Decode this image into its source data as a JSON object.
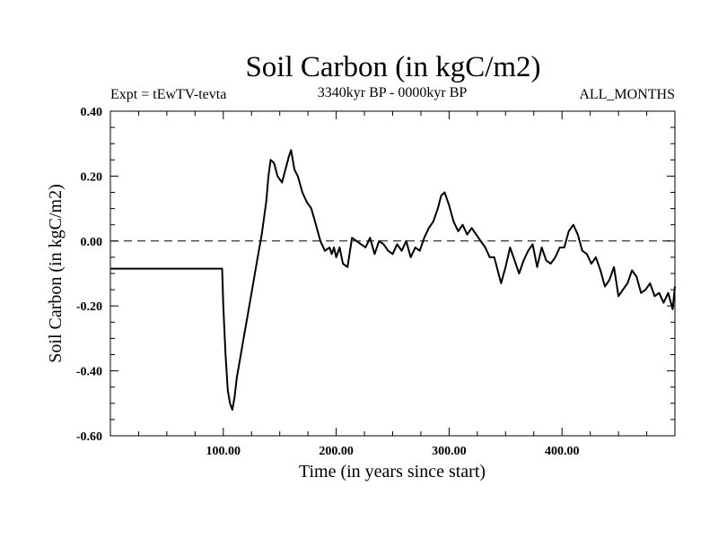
{
  "header": {
    "expt_label": "Expt = tEwTV-tevta",
    "period_label": "3340kyr BP - 0000kyr BP",
    "months_label": "ALL_MONTHS"
  },
  "chart_data": {
    "type": "line",
    "title": "Soil Carbon (in kgC/m2)",
    "xlabel": "Time (in years since start)",
    "ylabel": "Soil Carbon (in kgC/m2)",
    "xlim": [
      0,
      500
    ],
    "ylim": [
      -0.6,
      0.4
    ],
    "x_ticks": [
      100,
      200,
      300,
      400
    ],
    "x_tick_labels": [
      "100.00",
      "200.00",
      "300.00",
      "400.00"
    ],
    "y_ticks": [
      -0.6,
      -0.4,
      -0.2,
      0.0,
      0.2,
      0.4
    ],
    "y_tick_labels": [
      "-0.60",
      "-0.40",
      "-0.20",
      "0.00",
      "0.20",
      "0.40"
    ],
    "reference_line": {
      "y": 0.0,
      "style": "dashed"
    },
    "grid": false,
    "series": [
      {
        "name": "Soil Carbon",
        "x": [
          0,
          99,
          100,
          102,
          104,
          106,
          108,
          110,
          112,
          115,
          118,
          122,
          126,
          130,
          134,
          138,
          140,
          142,
          145,
          148,
          152,
          155,
          158,
          160,
          163,
          166,
          170,
          174,
          178,
          182,
          186,
          190,
          194,
          196,
          198,
          200,
          203,
          206,
          210,
          214,
          218,
          222,
          226,
          230,
          234,
          238,
          242,
          246,
          250,
          254,
          258,
          262,
          266,
          270,
          274,
          278,
          282,
          286,
          290,
          293,
          296,
          300,
          304,
          308,
          312,
          316,
          320,
          324,
          328,
          332,
          336,
          340,
          343,
          346,
          350,
          354,
          358,
          362,
          366,
          370,
          374,
          378,
          382,
          386,
          390,
          394,
          398,
          402,
          406,
          410,
          414,
          418,
          422,
          426,
          430,
          434,
          438,
          442,
          446,
          450,
          454,
          458,
          462,
          466,
          470,
          474,
          478,
          482,
          486,
          490,
          494,
          498,
          500
        ],
        "y": [
          -0.085,
          -0.085,
          -0.2,
          -0.35,
          -0.46,
          -0.5,
          -0.52,
          -0.48,
          -0.42,
          -0.36,
          -0.3,
          -0.22,
          -0.14,
          -0.06,
          0.02,
          0.12,
          0.2,
          0.25,
          0.24,
          0.2,
          0.18,
          0.22,
          0.26,
          0.28,
          0.22,
          0.2,
          0.15,
          0.12,
          0.1,
          0.05,
          0.0,
          -0.03,
          -0.02,
          -0.04,
          -0.02,
          -0.05,
          -0.02,
          -0.07,
          -0.08,
          0.01,
          0.0,
          -0.01,
          -0.02,
          0.01,
          -0.04,
          0.0,
          -0.01,
          -0.03,
          -0.04,
          -0.01,
          -0.03,
          0.0,
          -0.05,
          -0.02,
          -0.03,
          0.01,
          0.04,
          0.06,
          0.1,
          0.14,
          0.15,
          0.11,
          0.06,
          0.03,
          0.05,
          0.02,
          0.04,
          0.02,
          0.0,
          -0.02,
          -0.05,
          -0.05,
          -0.09,
          -0.13,
          -0.08,
          -0.02,
          -0.06,
          -0.1,
          -0.06,
          -0.03,
          -0.01,
          -0.08,
          -0.02,
          -0.06,
          -0.07,
          -0.05,
          -0.02,
          -0.02,
          0.03,
          0.05,
          0.02,
          -0.03,
          -0.04,
          -0.07,
          -0.05,
          -0.09,
          -0.14,
          -0.12,
          -0.08,
          -0.17,
          -0.15,
          -0.13,
          -0.09,
          -0.11,
          -0.16,
          -0.15,
          -0.13,
          -0.17,
          -0.16,
          -0.19,
          -0.16,
          -0.21,
          -0.14
        ]
      }
    ]
  }
}
